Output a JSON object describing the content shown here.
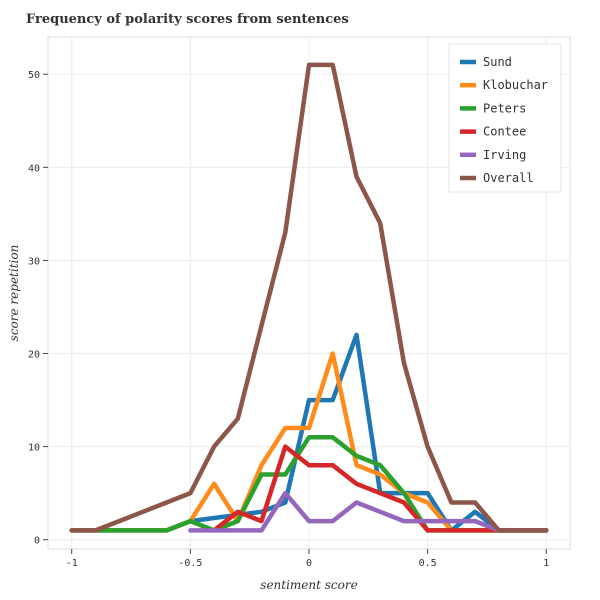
{
  "chart_data": {
    "type": "line",
    "title": "Frequency of polarity scores from sentences",
    "xlabel": "sentiment score",
    "ylabel": "score repetition",
    "xlim": [
      -1.1,
      1.1
    ],
    "ylim": [
      -1,
      54
    ],
    "xticks": [
      -1,
      -0.5,
      0,
      0.5,
      1
    ],
    "xtick_labels": [
      "-1",
      "-0.5",
      "0",
      "0.5",
      "1"
    ],
    "yticks": [
      0,
      10,
      20,
      30,
      40,
      50
    ],
    "ytick_labels": [
      "0",
      "10",
      "20",
      "30",
      "40",
      "50"
    ],
    "grid": true,
    "legend_position": "top-right",
    "series": [
      {
        "name": "Sund",
        "color": "#1f77b4",
        "points": [
          [
            -1,
            1
          ],
          [
            -0.9,
            1
          ],
          [
            -0.8,
            1
          ],
          [
            -0.7,
            1
          ],
          [
            -0.6,
            1
          ],
          [
            -0.5,
            2
          ],
          [
            -0.2,
            3
          ],
          [
            -0.1,
            4
          ],
          [
            0,
            15
          ],
          [
            0.1,
            15
          ],
          [
            0.2,
            22
          ],
          [
            0.3,
            5
          ],
          [
            0.4,
            5
          ],
          [
            0.5,
            5
          ],
          [
            0.6,
            1
          ],
          [
            0.7,
            3
          ],
          [
            0.8,
            1
          ],
          [
            0.9,
            1
          ],
          [
            1,
            1
          ]
        ]
      },
      {
        "name": "Klobuchar",
        "color": "#ff8c1a",
        "points": [
          [
            -1,
            1
          ],
          [
            -0.9,
            1
          ],
          [
            -0.8,
            1
          ],
          [
            -0.7,
            1
          ],
          [
            -0.6,
            1
          ],
          [
            -0.5,
            2
          ],
          [
            -0.4,
            6
          ],
          [
            -0.3,
            2
          ],
          [
            -0.2,
            8
          ],
          [
            -0.1,
            12
          ],
          [
            0,
            12
          ],
          [
            0.1,
            20
          ],
          [
            0.2,
            8
          ],
          [
            0.3,
            7
          ],
          [
            0.4,
            5
          ],
          [
            0.5,
            4
          ],
          [
            0.6,
            1
          ],
          [
            0.7,
            1
          ],
          [
            0.8,
            1
          ],
          [
            0.9,
            1
          ],
          [
            1,
            1
          ]
        ]
      },
      {
        "name": "Peters",
        "color": "#2ca02c",
        "points": [
          [
            -1,
            1
          ],
          [
            -0.9,
            1
          ],
          [
            -0.8,
            1
          ],
          [
            -0.7,
            1
          ],
          [
            -0.6,
            1
          ],
          [
            -0.5,
            2
          ],
          [
            -0.4,
            1
          ],
          [
            -0.3,
            2
          ],
          [
            -0.2,
            7
          ],
          [
            -0.1,
            7
          ],
          [
            0,
            11
          ],
          [
            0.1,
            11
          ],
          [
            0.2,
            9
          ],
          [
            0.3,
            8
          ],
          [
            0.4,
            5
          ],
          [
            0.5,
            1
          ],
          [
            0.6,
            1
          ],
          [
            0.7,
            1
          ],
          [
            0.8,
            1
          ],
          [
            0.9,
            1
          ],
          [
            1,
            1
          ]
        ]
      },
      {
        "name": "Contee",
        "color": "#d62728",
        "points": [
          [
            -0.4,
            1
          ],
          [
            -0.3,
            3
          ],
          [
            -0.2,
            2
          ],
          [
            -0.1,
            10
          ],
          [
            0,
            8
          ],
          [
            0.1,
            8
          ],
          [
            0.2,
            6
          ],
          [
            0.3,
            5
          ],
          [
            0.4,
            4
          ],
          [
            0.5,
            1
          ],
          [
            0.6,
            1
          ],
          [
            0.7,
            1
          ],
          [
            0.8,
            1
          ],
          [
            0.9,
            1
          ],
          [
            1,
            1
          ]
        ]
      },
      {
        "name": "Irving",
        "color": "#9467bd",
        "points": [
          [
            -0.5,
            1
          ],
          [
            -0.4,
            1
          ],
          [
            -0.3,
            1
          ],
          [
            -0.2,
            1
          ],
          [
            -0.1,
            5
          ],
          [
            0,
            2
          ],
          [
            0.1,
            2
          ],
          [
            0.2,
            4
          ],
          [
            0.3,
            3
          ],
          [
            0.4,
            2
          ],
          [
            0.5,
            2
          ],
          [
            0.6,
            2
          ],
          [
            0.7,
            2
          ],
          [
            0.8,
            1
          ],
          [
            0.9,
            1
          ],
          [
            1,
            1
          ]
        ]
      },
      {
        "name": "Overall",
        "color": "#8c564b",
        "points": [
          [
            -1,
            1
          ],
          [
            -0.9,
            1
          ],
          [
            -0.8,
            2
          ],
          [
            -0.7,
            3
          ],
          [
            -0.6,
            4
          ],
          [
            -0.5,
            5
          ],
          [
            -0.4,
            10
          ],
          [
            -0.3,
            13
          ],
          [
            -0.2,
            23
          ],
          [
            -0.1,
            33
          ],
          [
            0,
            51
          ],
          [
            0.1,
            51
          ],
          [
            0.2,
            39
          ],
          [
            0.3,
            34
          ],
          [
            0.4,
            19
          ],
          [
            0.5,
            10
          ],
          [
            0.6,
            4
          ],
          [
            0.7,
            4
          ],
          [
            0.8,
            1
          ],
          [
            0.9,
            1
          ],
          [
            1,
            1
          ]
        ]
      }
    ]
  }
}
